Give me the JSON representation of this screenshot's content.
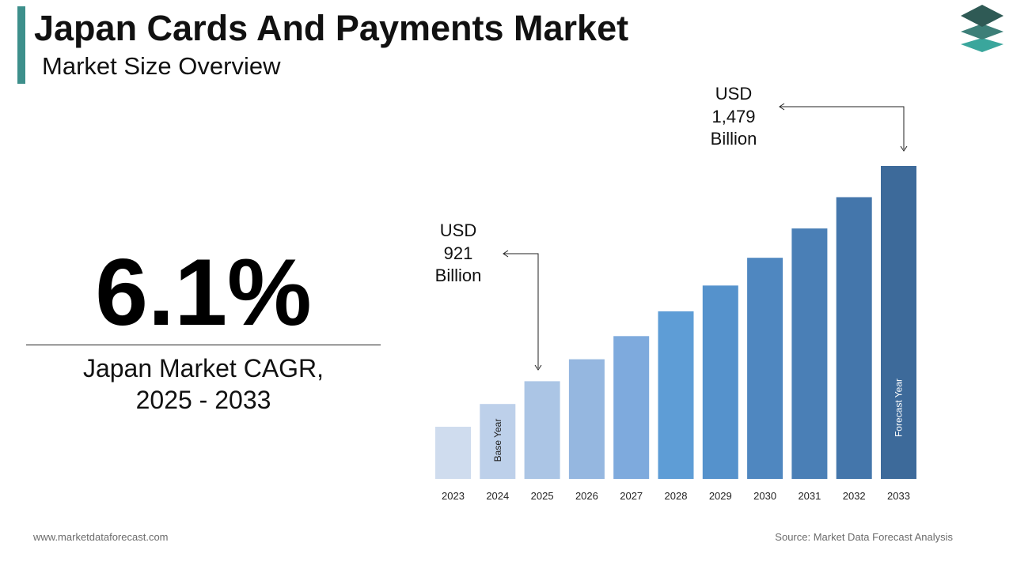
{
  "header": {
    "title": "Japan Cards And Payments Market",
    "subtitle": "Market Size Overview"
  },
  "cagr": {
    "value": "6.1%",
    "label_line1": "Japan Market CAGR,",
    "label_line2": "2025 - 2033"
  },
  "annotations": {
    "start": {
      "line1": "USD",
      "line2": "921",
      "line3": "Billion"
    },
    "end": {
      "line1": "USD",
      "line2": "1,479",
      "line3": "Billion"
    }
  },
  "bar_labels": {
    "base": "Base Year",
    "forecast": "Forecast Year"
  },
  "footer": {
    "website": "www.marketdataforecast.com",
    "source": "Source: Market Data Forecast Analysis"
  },
  "colors": {
    "accent": "#3d8f8b",
    "bars": [
      "#cfdcee",
      "#bdd0ea",
      "#abc5e5",
      "#95b7e0",
      "#7eaadd",
      "#5e9dd6",
      "#5592cc",
      "#4f87c0",
      "#4a7fb6",
      "#4476ab",
      "#3d6a9a"
    ]
  },
  "chart_data": {
    "type": "bar",
    "categories": [
      "2023",
      "2024",
      "2025",
      "2026",
      "2027",
      "2028",
      "2029",
      "2030",
      "2031",
      "2032",
      "2033"
    ],
    "values": [
      803,
      862,
      921,
      978,
      1038,
      1102,
      1169,
      1241,
      1317,
      1398,
      1479
    ],
    "title": "",
    "xlabel": "",
    "ylabel": "",
    "ylim": [
      0,
      1479
    ],
    "grid": false,
    "legend": "none"
  }
}
